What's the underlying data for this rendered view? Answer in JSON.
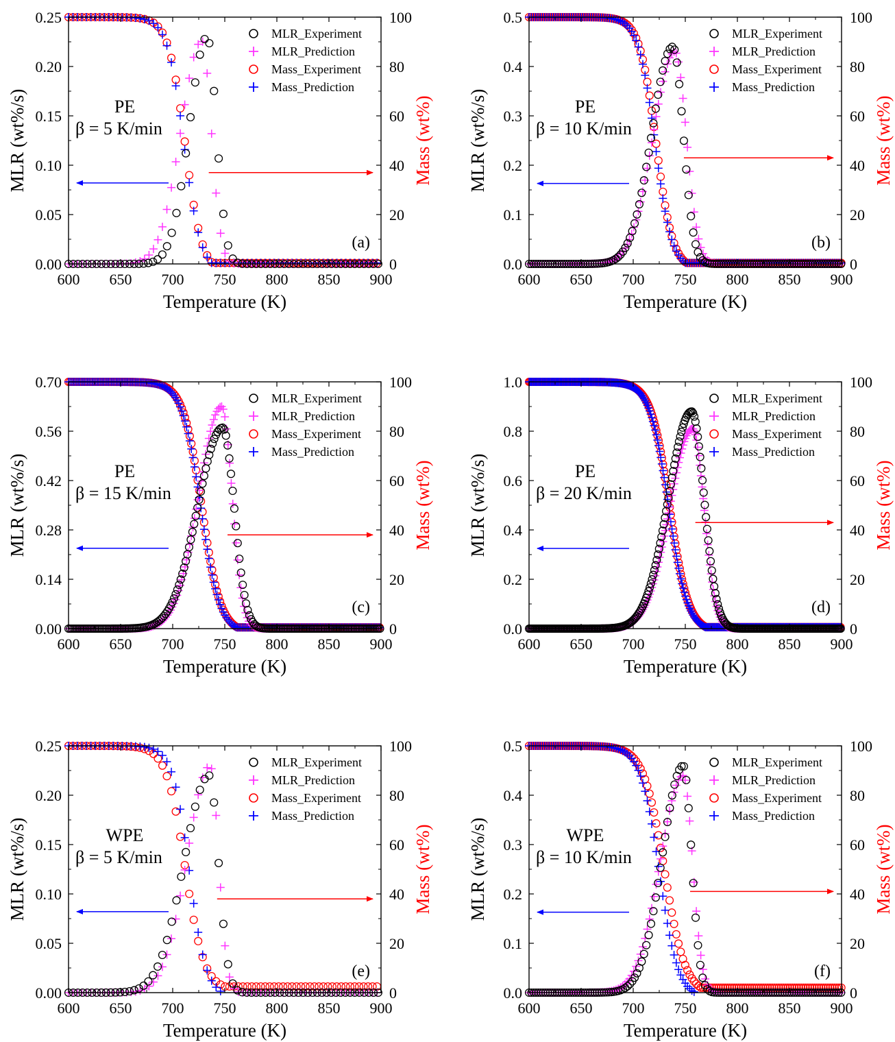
{
  "colors": {
    "mlr_experiment": "#000000",
    "mlr_prediction": "#ff33ff",
    "mass_experiment": "#ff0000",
    "mass_prediction": "#0000ff",
    "left_arrow": "#0000ff",
    "right_arrow": "#ff0000",
    "axis": "#000000",
    "right_axis_label": "#ff0000"
  },
  "legend": {
    "mlr_experiment": "MLR_Experiment",
    "mlr_prediction": "MLR_Prediction",
    "mass_experiment": "Mass_Experiment",
    "mass_prediction": "Mass_Prediction"
  },
  "chart_data": [
    {
      "type": "scatter",
      "panel": "(a)",
      "material": "PE",
      "rate": "β = 5 K/min",
      "xlabel": "Temperature (K)",
      "ylabel": "MLR (wt%/s)",
      "y2label": "Mass (wt%)",
      "xlim": [
        600,
        900
      ],
      "ylim": [
        0,
        0.25
      ],
      "y2lim": [
        0,
        100
      ],
      "xticks": [
        "600",
        "650",
        "700",
        "750",
        "800",
        "850",
        "900"
      ],
      "yticks": [
        "0.00",
        "0.05",
        "0.10",
        "0.15",
        "0.20",
        "0.25"
      ],
      "y2ticks": [
        "0",
        "20",
        "40",
        "60",
        "80",
        "100"
      ],
      "left_arrow_y": 0.082,
      "right_arrow_y": 37,
      "mlr_experiment": {
        "T0": 600,
        "k": 0.222,
        "Tp": 733,
        "peak": 0.23,
        "sl": 17,
        "sr": 9,
        "xmax": 900
      },
      "mlr_prediction": {
        "T0": 600,
        "k": 0.233,
        "Tp": 728,
        "peak": 0.226,
        "sl": 20,
        "sr": 9,
        "xmax": 900
      },
      "mass_experiment": {
        "T0": 600,
        "k": 0.233,
        "Tm": 712,
        "w": 8,
        "end": 738,
        "res": 0.4,
        "xmax": 900
      },
      "mass_prediction": {
        "T0": 600,
        "k": 0.233,
        "Tm": 711,
        "w": 8,
        "end": 737,
        "res": 0.4,
        "xmax": 900
      }
    },
    {
      "type": "scatter",
      "panel": "(b)",
      "material": "PE",
      "rate": "β = 10 K/min",
      "xlabel": "Temperature (K)",
      "ylabel": "MLR (wt%/s)",
      "y2label": "Mass (wt%)",
      "xlim": [
        600,
        900
      ],
      "ylim": [
        0,
        0.5
      ],
      "y2lim": [
        0,
        100
      ],
      "xticks": [
        "600",
        "650",
        "700",
        "750",
        "800",
        "850",
        "900"
      ],
      "yticks": [
        "0.0",
        "0.1",
        "0.2",
        "0.3",
        "0.4",
        "0.5"
      ],
      "y2ticks": [
        "0",
        "20",
        "40",
        "60",
        "80",
        "100"
      ],
      "left_arrow_y": 0.163,
      "right_arrow_y": 43,
      "mlr_experiment": {
        "T0": 600,
        "k": 0.444,
        "Tp": 738,
        "peak": 0.44,
        "sl": 20,
        "sr": 10,
        "xmax": 900
      },
      "mlr_prediction": {
        "T0": 600,
        "k": 0.467,
        "Tp": 740,
        "peak": 0.43,
        "sl": 21,
        "sr": 11,
        "xmax": 900
      },
      "mass_experiment": {
        "T0": 600,
        "k": 0.467,
        "Tm": 722,
        "w": 8,
        "end": 751,
        "res": 0.4,
        "xmax": 900
      },
      "mass_prediction": {
        "T0": 600,
        "k": 0.467,
        "Tm": 721,
        "w": 8,
        "end": 750,
        "res": 0.4,
        "xmax": 900
      }
    },
    {
      "type": "scatter",
      "panel": "(c)",
      "material": "PE",
      "rate": "β = 15 K/min",
      "xlabel": "Temperature (K)",
      "ylabel": "MLR (wt%/s)",
      "y2label": "Mass (wt%)",
      "xlim": [
        600,
        900
      ],
      "ylim": [
        0,
        0.7
      ],
      "y2lim": [
        0,
        100
      ],
      "xticks": [
        "600",
        "650",
        "700",
        "750",
        "800",
        "850",
        "900"
      ],
      "yticks": [
        "0.00",
        "0.14",
        "0.28",
        "0.42",
        "0.56",
        "0.70"
      ],
      "y2ticks": [
        "0",
        "20",
        "40",
        "60",
        "80",
        "100"
      ],
      "left_arrow_y": 0.228,
      "right_arrow_y": 38,
      "mlr_experiment": {
        "T0": 600,
        "k": 0.622,
        "Tp": 748,
        "peak": 0.57,
        "sl": 24,
        "sr": 11,
        "xmax": 900
      },
      "mlr_prediction": {
        "T0": 600,
        "k": 0.653,
        "Tp": 747,
        "peak": 0.63,
        "sl": 22,
        "sr": 10,
        "xmax": 900
      },
      "mass_experiment": {
        "T0": 600,
        "k": 0.653,
        "Tm": 728,
        "w": 9,
        "end": 762,
        "res": 0.5,
        "xmax": 900
      },
      "mass_prediction": {
        "T0": 600,
        "k": 0.653,
        "Tm": 727,
        "w": 9,
        "end": 761,
        "res": 0.5,
        "xmax": 900
      }
    },
    {
      "type": "scatter",
      "panel": "(d)",
      "material": "PE",
      "rate": "β = 20 K/min",
      "xlabel": "Temperature (K)",
      "ylabel": "MLR (wt%/s)",
      "y2label": "Mass (wt%)",
      "xlim": [
        600,
        900
      ],
      "ylim": [
        0,
        1.0
      ],
      "y2lim": [
        0,
        100
      ],
      "xticks": [
        "600",
        "650",
        "700",
        "750",
        "800",
        "850",
        "900"
      ],
      "yticks": [
        "0.0",
        "0.2",
        "0.4",
        "0.6",
        "0.8",
        "1.0"
      ],
      "y2ticks": [
        "0",
        "20",
        "40",
        "60",
        "80",
        "100"
      ],
      "left_arrow_y": 0.325,
      "right_arrow_y": 43,
      "mlr_experiment": {
        "T0": 600,
        "k": 0.889,
        "Tp": 756,
        "peak": 0.88,
        "sl": 22,
        "sr": 12,
        "xmax": 900
      },
      "mlr_prediction": {
        "T0": 600,
        "k": 0.933,
        "Tp": 757,
        "peak": 0.81,
        "sl": 22,
        "sr": 11,
        "xmax": 900
      },
      "mass_experiment": {
        "T0": 600,
        "k": 0.933,
        "Tm": 735,
        "w": 9,
        "end": 770,
        "res": 0.6,
        "xmax": 900
      },
      "mass_prediction": {
        "T0": 600,
        "k": 0.933,
        "Tm": 734,
        "w": 9,
        "end": 769,
        "res": 0.6,
        "xmax": 900
      }
    },
    {
      "type": "scatter",
      "panel": "(e)",
      "material": "WPE",
      "rate": "β = 5 K/min",
      "xlabel": "Temperature (K)",
      "ylabel": "MLR (wt%/s)",
      "y2label": "Mass (wt%)",
      "xlim": [
        600,
        900
      ],
      "ylim": [
        0,
        0.25
      ],
      "y2lim": [
        0,
        100
      ],
      "xticks": [
        "600",
        "650",
        "700",
        "750",
        "800",
        "850",
        "900"
      ],
      "yticks": [
        "0.00",
        "0.05",
        "0.10",
        "0.15",
        "0.20",
        "0.25"
      ],
      "y2ticks": [
        "0",
        "20",
        "40",
        "60",
        "80",
        "100"
      ],
      "left_arrow_y": 0.082,
      "right_arrow_y": 38,
      "mlr_experiment": {
        "T0": 600,
        "k": 0.222,
        "Tp": 735,
        "peak": 0.22,
        "sl": 24,
        "sr": 9,
        "xmax": 900
      },
      "mlr_prediction": {
        "T0": 600,
        "k": 0.233,
        "Tp": 736,
        "peak": 0.23,
        "sl": 22,
        "sr": 8,
        "xmax": 900
      },
      "mass_experiment": {
        "T0": 600,
        "k": 0.233,
        "Tm": 712,
        "w": 9,
        "end": 750,
        "res": 2.5,
        "xmax": 900
      },
      "mass_prediction": {
        "T0": 600,
        "k": 0.233,
        "Tm": 716,
        "w": 8,
        "end": 747,
        "res": 0.3,
        "xmax": 748
      }
    },
    {
      "type": "scatter",
      "panel": "(f)",
      "material": "WPE",
      "rate": "β = 10 K/min",
      "xlabel": "Temperature (K)",
      "ylabel": "MLR (wt%/s)",
      "y2label": "Mass (wt%)",
      "xlim": [
        600,
        900
      ],
      "ylim": [
        0,
        0.5
      ],
      "y2lim": [
        0,
        100
      ],
      "xticks": [
        "600",
        "650",
        "700",
        "750",
        "800",
        "850",
        "900"
      ],
      "yticks": [
        "0.0",
        "0.1",
        "0.2",
        "0.3",
        "0.4",
        "0.5"
      ],
      "y2ticks": [
        "0",
        "20",
        "40",
        "60",
        "80",
        "100"
      ],
      "left_arrow_y": 0.163,
      "right_arrow_y": 41,
      "mlr_experiment": {
        "T0": 600,
        "k": 0.444,
        "Tp": 748,
        "peak": 0.46,
        "sl": 20,
        "sr": 8,
        "xmax": 900
      },
      "mlr_prediction": {
        "T0": 600,
        "k": 0.467,
        "Tp": 748,
        "peak": 0.44,
        "sl": 22,
        "sr": 9,
        "xmax": 900
      },
      "mass_experiment": {
        "T0": 600,
        "k": 0.467,
        "Tm": 730,
        "w": 10,
        "end": 765,
        "res": 2.0,
        "xmax": 900
      },
      "mass_prediction": {
        "T0": 600,
        "k": 0.467,
        "Tm": 725,
        "w": 9,
        "end": 758,
        "res": 0.3,
        "xmax": 760
      }
    }
  ]
}
